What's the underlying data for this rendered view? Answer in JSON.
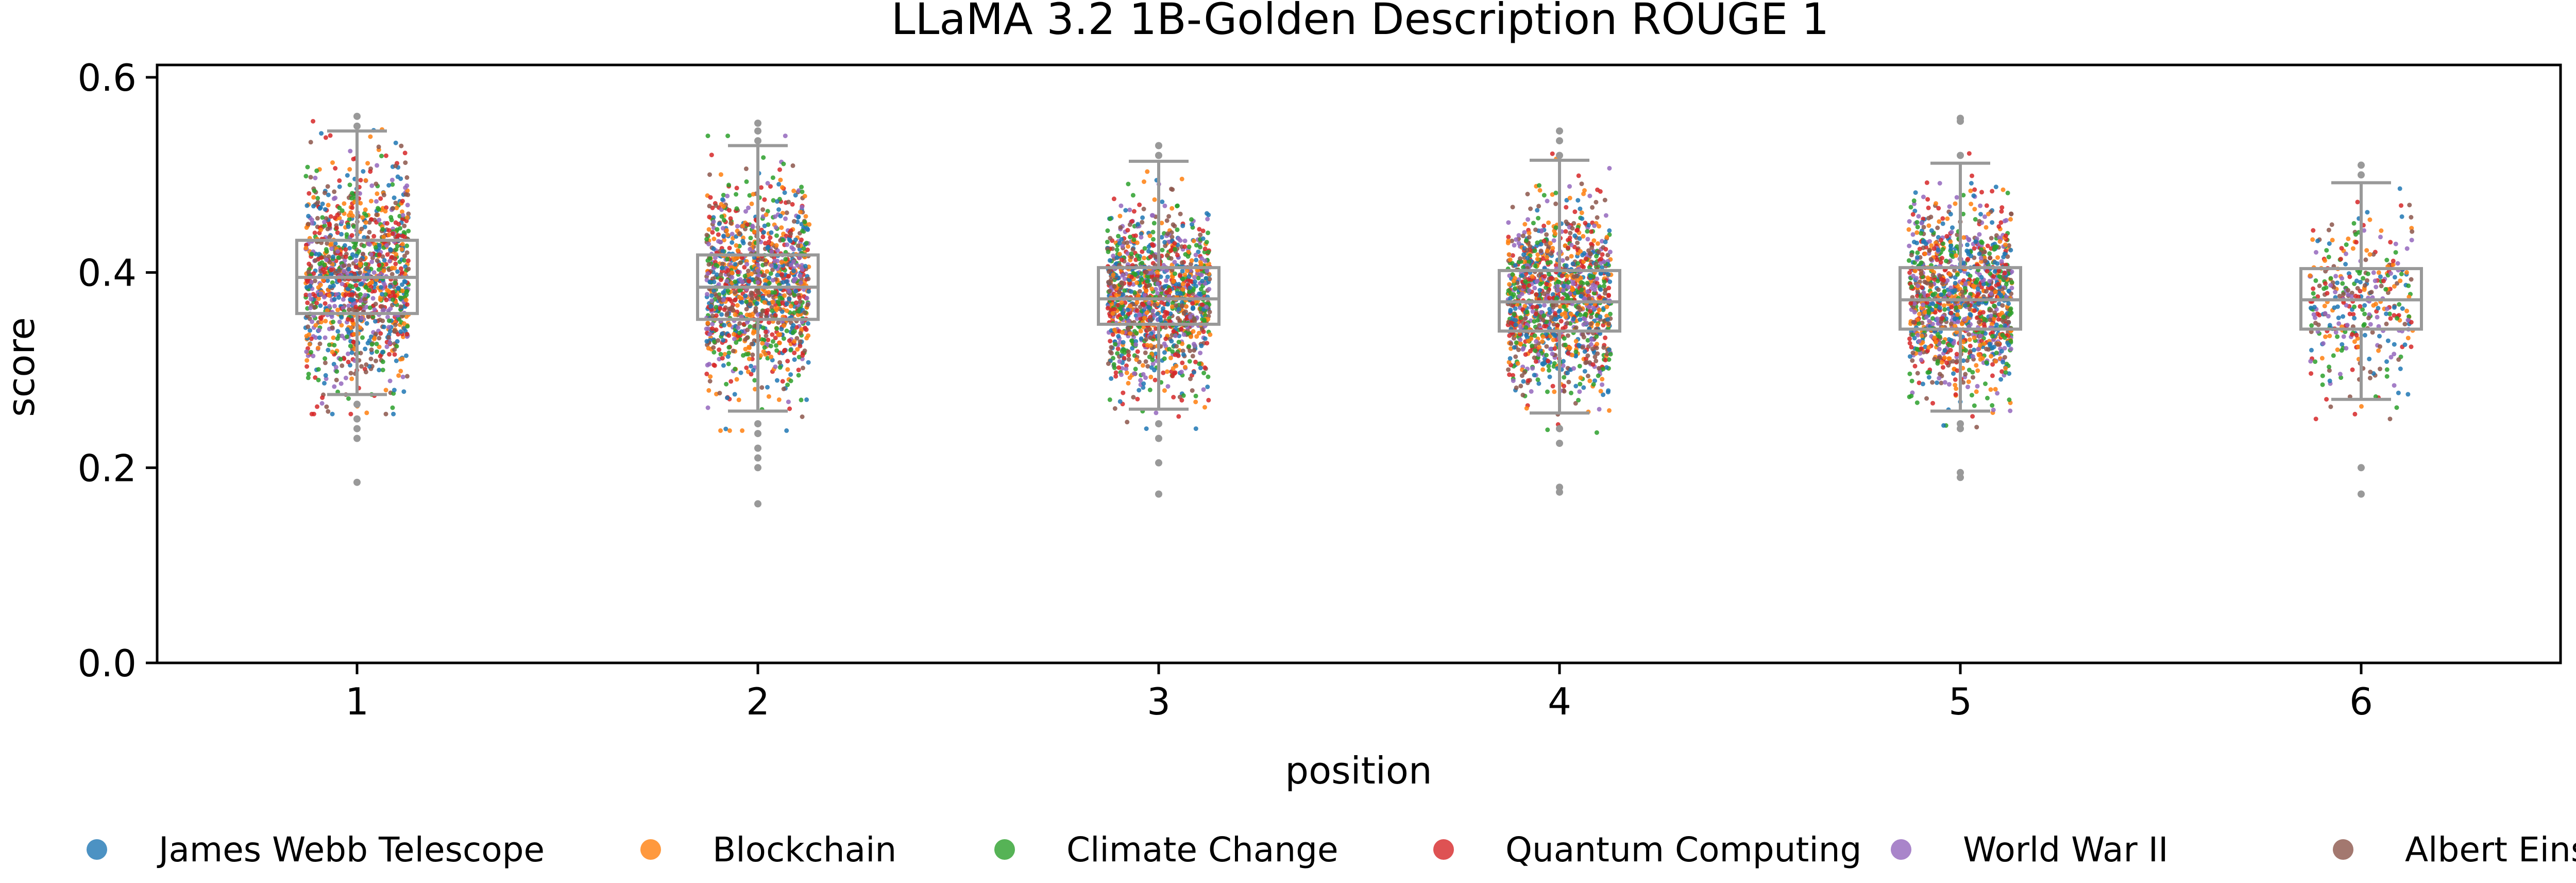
{
  "chart_data": {
    "type": "box",
    "title": "LLaMA 3.2 1B-Golden Description ROUGE 1",
    "xlabel": "position",
    "ylabel": "score",
    "ylim": [
      0.0,
      0.62
    ],
    "yticks": [
      0.0,
      0.2,
      0.4,
      0.6
    ],
    "categories": [
      "1",
      "2",
      "3",
      "4",
      "5",
      "6"
    ],
    "grid": false,
    "legend_position": "bottom",
    "box_color": "#999999",
    "boxes": [
      {
        "position": "1",
        "whisker_low": 0.275,
        "q1": 0.358,
        "median": 0.395,
        "q3": 0.433,
        "whisker_high": 0.545,
        "outliers": [
          0.185,
          0.23,
          0.24,
          0.25,
          0.265,
          0.55,
          0.56
        ]
      },
      {
        "position": "2",
        "whisker_low": 0.258,
        "q1": 0.352,
        "median": 0.385,
        "q3": 0.418,
        "whisker_high": 0.53,
        "outliers": [
          0.163,
          0.2,
          0.21,
          0.22,
          0.235,
          0.245,
          0.535,
          0.545,
          0.553
        ]
      },
      {
        "position": "3",
        "whisker_low": 0.26,
        "q1": 0.347,
        "median": 0.373,
        "q3": 0.405,
        "whisker_high": 0.514,
        "outliers": [
          0.173,
          0.205,
          0.23,
          0.245,
          0.52,
          0.53
        ]
      },
      {
        "position": "4",
        "whisker_low": 0.256,
        "q1": 0.34,
        "median": 0.37,
        "q3": 0.402,
        "whisker_high": 0.515,
        "outliers": [
          0.175,
          0.18,
          0.225,
          0.24,
          0.52,
          0.535,
          0.545
        ]
      },
      {
        "position": "5",
        "whisker_low": 0.258,
        "q1": 0.342,
        "median": 0.372,
        "q3": 0.405,
        "whisker_high": 0.512,
        "outliers": [
          0.19,
          0.195,
          0.24,
          0.245,
          0.52,
          0.555,
          0.558
        ]
      },
      {
        "position": "6",
        "whisker_low": 0.27,
        "q1": 0.342,
        "median": 0.372,
        "q3": 0.404,
        "whisker_high": 0.492,
        "outliers": [
          0.173,
          0.2,
          0.5,
          0.51
        ]
      }
    ],
    "strip_points_per_position": [
      1200,
      1200,
      1200,
      1200,
      1200,
      350
    ],
    "series": [
      {
        "name": "James Webb Telescope",
        "color": "#1f77b4"
      },
      {
        "name": "Blockchain",
        "color": "#ff7f0e"
      },
      {
        "name": "Climate Change",
        "color": "#2ca02c"
      },
      {
        "name": "Quantum Computing",
        "color": "#d62728"
      },
      {
        "name": "World War II",
        "color": "#9467bd"
      },
      {
        "name": "Albert Einstein",
        "color": "#8c564b"
      }
    ]
  }
}
